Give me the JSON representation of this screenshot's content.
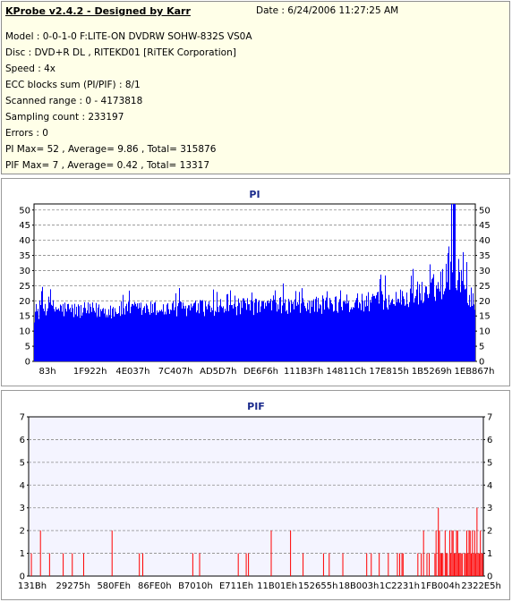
{
  "info": {
    "title": "KProbe v2.4.2 - Designed by Karr",
    "date": "Date : 6/24/2006 11:27:25 AM",
    "lines": [
      "Model : 0-0-1-0 F:LITE-ON DVDRW SOHW-832S  VS0A",
      "Disc : DVD+R DL , RITEKD01 [RiTEK Corporation]",
      "Speed : 4x",
      "ECC blocks sum (PI/PIF) : 8/1",
      "Scanned range : 0 - 4173818",
      "Sampling count : 233197",
      "Errors : 0",
      "PI Max= 52 , Average= 9.86 , Total= 315876",
      "PIF Max= 7 , Average= 0.42 , Total= 13317"
    ]
  },
  "chart_data": [
    {
      "type": "bar",
      "title": "PI",
      "ylim": [
        0,
        52
      ],
      "yticks": [
        0,
        5,
        10,
        15,
        20,
        25,
        30,
        35,
        40,
        45,
        50
      ],
      "xtick_labels": [
        "83h",
        "1F922h",
        "4E037h",
        "7C407h",
        "AD5D7h",
        "DE6F6h",
        "111B3Fh",
        "14811Ch",
        "17E815h",
        "1B5269h",
        "1EB867h"
      ],
      "grid": true,
      "color": "#0000ff",
      "profile": [
        {
          "x": 0.0,
          "base": 14,
          "peak": 22
        },
        {
          "x": 0.02,
          "base": 16,
          "peak": 24
        },
        {
          "x": 0.1,
          "base": 15,
          "peak": 22
        },
        {
          "x": 0.4,
          "base": 16,
          "peak": 23
        },
        {
          "x": 0.7,
          "base": 17,
          "peak": 25
        },
        {
          "x": 0.85,
          "base": 19,
          "peak": 27
        },
        {
          "x": 0.92,
          "base": 22,
          "peak": 35
        },
        {
          "x": 0.95,
          "base": 28,
          "peak": 52
        },
        {
          "x": 0.97,
          "base": 22,
          "peak": 37
        },
        {
          "x": 1.0,
          "base": 18,
          "peak": 26
        }
      ]
    },
    {
      "type": "bar",
      "title": "PIF",
      "ylim": [
        0,
        7
      ],
      "yticks": [
        0,
        1,
        2,
        3,
        4,
        5,
        6,
        7
      ],
      "xtick_labels": [
        "131Bh",
        "29275h",
        "580FEh",
        "86FE0h",
        "B7010h",
        "E711Eh",
        "11B01Eh",
        "152655h",
        "18B003h",
        "1C2231h",
        "1FB004h",
        "2322E5h"
      ],
      "grid": true,
      "color": "#ff0000",
      "profile": [
        {
          "x": 0.0,
          "p1": 0.08,
          "p2": 0.02,
          "p3": 0.0
        },
        {
          "x": 0.8,
          "p1": 0.08,
          "p2": 0.02,
          "p3": 0.0
        },
        {
          "x": 0.88,
          "p1": 0.3,
          "p2": 0.1,
          "p3": 0.01
        },
        {
          "x": 0.92,
          "p1": 0.6,
          "p2": 0.3,
          "p3": 0.04
        },
        {
          "x": 1.0,
          "p1": 0.6,
          "p2": 0.35,
          "p3": 0.05
        }
      ]
    }
  ]
}
